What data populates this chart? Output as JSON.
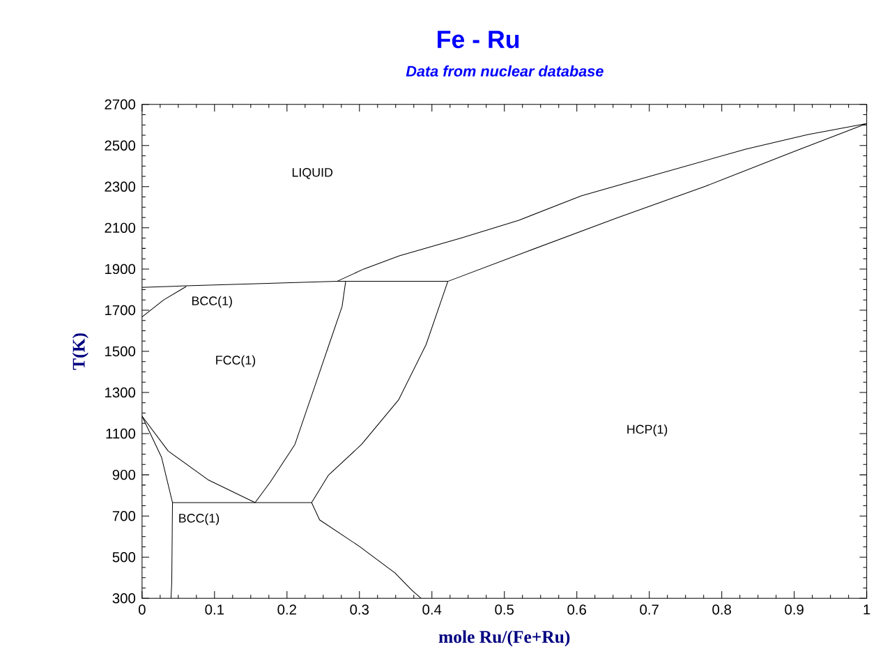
{
  "chart_data": {
    "type": "line",
    "title": "Fe - Ru",
    "subtitle": "Data from nuclear database",
    "xlabel": "mole Ru/(Fe+Ru)",
    "ylabel": "T(K)",
    "xlim": [
      0,
      1
    ],
    "ylim": [
      300,
      2700
    ],
    "xticks": [
      0,
      0.1,
      0.2,
      0.3,
      0.4,
      0.5,
      0.6,
      0.7,
      0.8,
      0.9,
      1
    ],
    "yticks": [
      300,
      500,
      700,
      900,
      1100,
      1300,
      1500,
      1700,
      1900,
      2100,
      2300,
      2500,
      2700
    ],
    "grid": false,
    "marker": "none",
    "line_style": "solid",
    "series": [
      {
        "color": "#000000",
        "x": [
          0,
          0.06,
          0.15,
          0.269,
          0.306,
          0.355,
          0.441,
          0.52,
          0.606,
          0.692,
          0.833,
          0.919,
          1,
          0.9,
          0.778,
          0.655,
          0.532,
          0.422,
          0.269
        ],
        "values": [
          1811,
          1818,
          1828,
          1840,
          1900,
          1964,
          2051,
          2137,
          2255,
          2342,
          2482,
          2553,
          2607,
          2471,
          2303,
          2148,
          1986,
          1840,
          1840
        ]
      },
      {
        "color": "#000000",
        "x": [
          0,
          0.03,
          0.061
        ],
        "values": [
          1667,
          1750,
          1815
        ]
      },
      {
        "color": "#000000",
        "x": [
          0.281,
          0.276,
          0.257,
          0.232,
          0.211,
          0.177,
          0.156
        ],
        "values": [
          1840,
          1717,
          1522,
          1264,
          1048,
          865,
          765
        ]
      },
      {
        "color": "#000000",
        "x": [
          0.422,
          0.392,
          0.354,
          0.303,
          0.257,
          0.234
        ],
        "values": [
          1840,
          1533,
          1264,
          1048,
          897,
          765
        ]
      },
      {
        "color": "#000000",
        "x": [
          0.042,
          0.234
        ],
        "values": [
          765,
          765
        ]
      },
      {
        "color": "#000000",
        "x": [
          0,
          0.036,
          0.091,
          0.156
        ],
        "values": [
          1185,
          1016,
          876,
          765
        ]
      },
      {
        "color": "#000000",
        "x": [
          0,
          0.027,
          0.042,
          0.041,
          0.04
        ],
        "values": [
          1185,
          984,
          765,
          380,
          300
        ]
      },
      {
        "color": "#000000",
        "x": [
          0.234,
          0.245,
          0.3,
          0.349,
          0.373,
          0.385
        ],
        "values": [
          765,
          681,
          552,
          423,
          337,
          300
        ]
      }
    ],
    "annotations": [
      "LIQUID",
      "BCC(1)",
      "FCC(1)",
      "HCP(1)",
      "BCC(1)"
    ]
  }
}
